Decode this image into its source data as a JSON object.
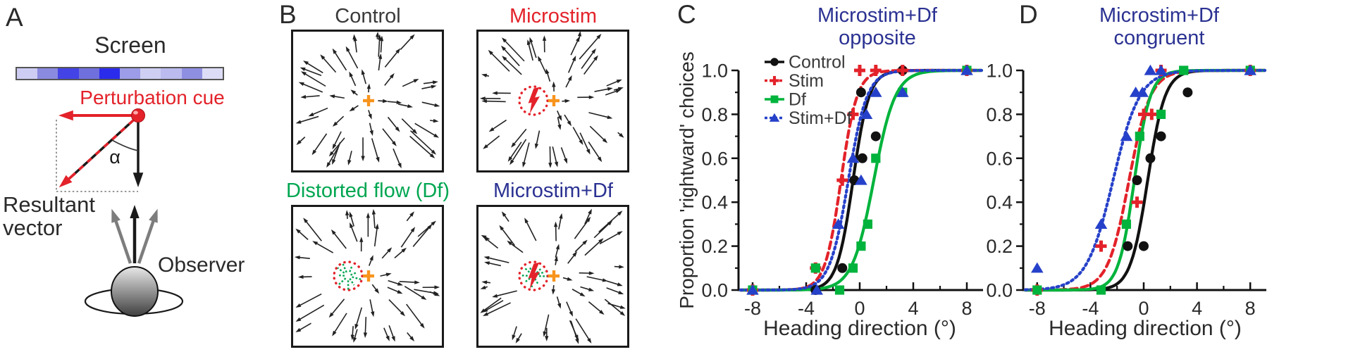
{
  "figure": {
    "colors": {
      "accent_red": "#E3222A",
      "accent_green": "#00A651",
      "accent_navy": "#2B3292",
      "curve_green": "#00B33C",
      "curve_blue": "#2641C9",
      "fixation_orange": "#F7941D",
      "ink": "#1a1a1a",
      "gray_arrow": "#7d7d7d"
    },
    "panels": {
      "A": {
        "letter": "A",
        "screen_label": "Screen",
        "perturbation_label": "Perturbation cue",
        "alpha_label": "α",
        "resultant_label": "Resultant\nvector",
        "observer_label": "Observer",
        "screen_bar_colors": [
          "#CDCDF4",
          "#8A8AE0",
          "#4343E6",
          "#6F6FDE",
          "#2B2BEC",
          "#9C9CE8",
          "#CFCFF3",
          "#BBBBEF",
          "#8F8FE2",
          "#DCDCF6"
        ]
      },
      "B": {
        "letter": "B",
        "boxes": [
          {
            "title": "Control",
            "title_color": "#3a3a3a",
            "overlays": {
              "fixation_cross": true,
              "stim_circle": false,
              "lightning": false,
              "distorted_flow": false
            }
          },
          {
            "title": "Microstim",
            "title_color": "#E3222A",
            "overlays": {
              "fixation_cross": true,
              "stim_circle": true,
              "lightning": true,
              "distorted_flow": false
            }
          },
          {
            "title": "Distorted flow (Df)",
            "title_color": "#00A651",
            "overlays": {
              "fixation_cross": true,
              "stim_circle": true,
              "lightning": false,
              "distorted_flow": true
            }
          },
          {
            "title": "Microstim+Df",
            "title_color": "#2B3292",
            "overlays": {
              "fixation_cross": true,
              "stim_circle": true,
              "lightning": true,
              "distorted_flow": true
            }
          }
        ]
      },
      "C": {
        "letter": "C"
      },
      "D": {
        "letter": "D"
      }
    }
  },
  "chart_data": [
    {
      "id": "C",
      "type": "line",
      "title_line1": "Microstim+Df",
      "title_line2": "opposite",
      "title_color": "#2B3292",
      "xlabel": "Heading direction (°)",
      "ylabel": "Proportion 'rightward' choices",
      "xlim": [
        -9,
        9
      ],
      "ylim": [
        0,
        1
      ],
      "xticks": [
        -8,
        -4,
        0,
        4,
        8
      ],
      "xtick_labels": [
        "-8",
        "-4",
        "0",
        "4",
        "8"
      ],
      "xminor": [
        -6,
        -2,
        2,
        6
      ],
      "ytick_vals": [
        0,
        0.2,
        0.4,
        0.6,
        0.8,
        1.0
      ],
      "ytick_labels": [
        "0.0",
        "0.2",
        "0.4",
        "0.6",
        "0.8",
        "1.0"
      ],
      "show_legend": true,
      "legend_text_color": "#3a3a3a",
      "series": [
        {
          "name": "Control",
          "color": "#111111",
          "line": "solid",
          "marker": "circle",
          "pse": -0.5,
          "slope": 0.6,
          "points": [
            [
              -3.3,
              0
            ],
            [
              -1.3,
              0.1
            ],
            [
              -0.4,
              0.5
            ],
            [
              0.1,
              0.9
            ],
            [
              0.2,
              0.6
            ],
            [
              1.2,
              0.7
            ],
            [
              3.2,
              1
            ],
            [
              8,
              1
            ]
          ]
        },
        {
          "name": "Stim",
          "color": "#E3222A",
          "line": "dashed",
          "marker": "plus",
          "pse": -1.4,
          "slope": 0.6,
          "points": [
            [
              -8,
              0
            ],
            [
              -3.3,
              0.1
            ],
            [
              -1.3,
              0.5
            ],
            [
              -0.5,
              0.8
            ],
            [
              0,
              1
            ],
            [
              1.2,
              1
            ],
            [
              3.2,
              1
            ],
            [
              8,
              1
            ]
          ]
        },
        {
          "name": "Df",
          "color": "#00B33C",
          "line": "solid",
          "marker": "square",
          "pse": 1.05,
          "slope": 0.8,
          "points": [
            [
              -8,
              0
            ],
            [
              -3.3,
              0.1
            ],
            [
              -1.5,
              0
            ],
            [
              -0.5,
              0.1
            ],
            [
              0.1,
              0.2
            ],
            [
              0.6,
              0.3
            ],
            [
              1.2,
              0.6
            ],
            [
              3.2,
              0.9
            ],
            [
              8,
              1
            ]
          ]
        },
        {
          "name": "Stim+Df",
          "color": "#2641C9",
          "line": "dotted",
          "marker": "triangle",
          "pse": -0.85,
          "slope": 0.7,
          "points": [
            [
              -8,
              0
            ],
            [
              -3.2,
              0
            ],
            [
              -1.6,
              0.3
            ],
            [
              -0.5,
              0.6
            ],
            [
              0.1,
              0.5
            ],
            [
              0.5,
              0.8
            ],
            [
              1.2,
              0.9
            ],
            [
              3.2,
              0.9
            ],
            [
              8,
              1
            ]
          ]
        }
      ]
    },
    {
      "id": "D",
      "type": "line",
      "title_line1": "Microstim+Df",
      "title_line2": "congruent",
      "title_color": "#2B3292",
      "xlabel": "Heading direction (°)",
      "ylabel": "",
      "xlim": [
        -9,
        9
      ],
      "ylim": [
        0,
        1
      ],
      "xticks": [
        -8,
        -4,
        0,
        4,
        8
      ],
      "xtick_labels": [
        "-8",
        "-4",
        "0",
        "4",
        "8"
      ],
      "xminor": [
        -6,
        -2,
        2,
        6
      ],
      "ytick_vals": [
        0,
        0.2,
        0.4,
        0.6,
        0.8,
        1.0
      ],
      "ytick_labels": [
        "0.0",
        "0.2",
        "0.4",
        "0.6",
        "0.8",
        "1.0"
      ],
      "show_legend": false,
      "legend_text_color": "#3a3a3a",
      "series": [
        {
          "name": "Control",
          "color": "#111111",
          "line": "solid",
          "marker": "circle",
          "pse": 0.3,
          "slope": 0.65,
          "points": [
            [
              -1.2,
              0.2
            ],
            [
              -0.5,
              0.5
            ],
            [
              0,
              0.2
            ],
            [
              0.5,
              0.6
            ],
            [
              1.3,
              0.7
            ],
            [
              3.3,
              0.9
            ],
            [
              8,
              1
            ]
          ]
        },
        {
          "name": "Stim",
          "color": "#E3222A",
          "line": "dashed",
          "marker": "plus",
          "pse": -1.1,
          "slope": 0.8,
          "points": [
            [
              -8,
              0
            ],
            [
              -3.2,
              0.2
            ],
            [
              -0.5,
              0.4
            ],
            [
              0,
              0.8
            ],
            [
              0.6,
              0.8
            ],
            [
              1.3,
              1
            ],
            [
              8,
              1
            ]
          ]
        },
        {
          "name": "Df",
          "color": "#00B33C",
          "line": "solid",
          "marker": "square",
          "pse": -0.7,
          "slope": 0.6,
          "points": [
            [
              -8,
              0
            ],
            [
              -3.2,
              0
            ],
            [
              -1.3,
              0.3
            ],
            [
              -0.3,
              0.7
            ],
            [
              1.3,
              0.8
            ],
            [
              3,
              1
            ],
            [
              8,
              1
            ]
          ]
        },
        {
          "name": "Stim+Df",
          "color": "#2641C9",
          "line": "dotted",
          "marker": "triangle",
          "pse": -2.3,
          "slope": 1.0,
          "points": [
            [
              -8,
              0.1
            ],
            [
              -3.2,
              0.3
            ],
            [
              -1.3,
              0.7
            ],
            [
              -0.6,
              0.9
            ],
            [
              -0.1,
              0.9
            ],
            [
              0.5,
              1
            ],
            [
              1.3,
              1
            ],
            [
              8,
              1
            ]
          ]
        }
      ]
    }
  ]
}
